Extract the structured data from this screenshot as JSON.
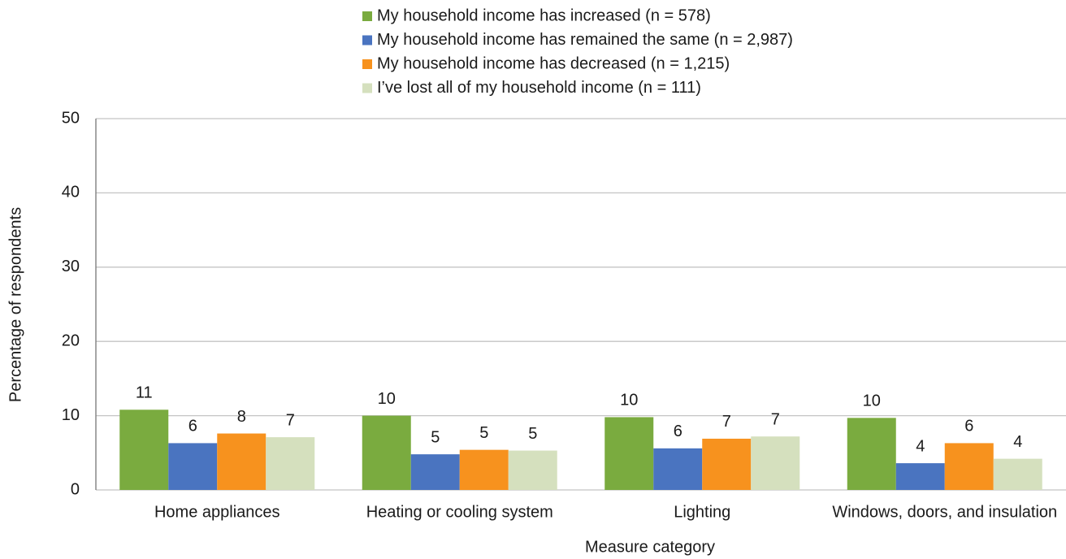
{
  "chart_data": {
    "type": "bar",
    "x_label": "Measure category",
    "y_label": "Percentage of respondents",
    "categories": [
      "Home appliances",
      "Heating or cooling system",
      "Lighting",
      "Windows, doors, and insulation"
    ],
    "series": [
      {
        "name": "My household income has increased (n = 578)",
        "color": "#7aab3f",
        "values": [
          10.8,
          10.0,
          9.8,
          9.7
        ],
        "value_labels": [
          "11",
          "10",
          "10",
          "10"
        ]
      },
      {
        "name": "My household income has remained the same (n = 2,987)",
        "color": "#4a74c0",
        "values": [
          6.3,
          4.8,
          5.6,
          3.6
        ],
        "value_labels": [
          "6",
          "5",
          "6",
          "4"
        ]
      },
      {
        "name": "My household income has decreased (n = 1,215)",
        "color": "#f7921e",
        "values": [
          7.6,
          5.4,
          6.9,
          6.3
        ],
        "value_labels": [
          "8",
          "5",
          "7",
          "6"
        ]
      },
      {
        "name": "I’ve lost all of my household income (n = 111)",
        "color": "#d5e0be",
        "values": [
          7.1,
          5.3,
          7.2,
          4.2
        ],
        "value_labels": [
          "7",
          "5",
          "7",
          "4"
        ]
      }
    ],
    "ylim": [
      0,
      50
    ],
    "yticks": [
      0,
      10,
      20,
      30,
      40,
      50
    ],
    "grid": true,
    "legend": "top"
  }
}
